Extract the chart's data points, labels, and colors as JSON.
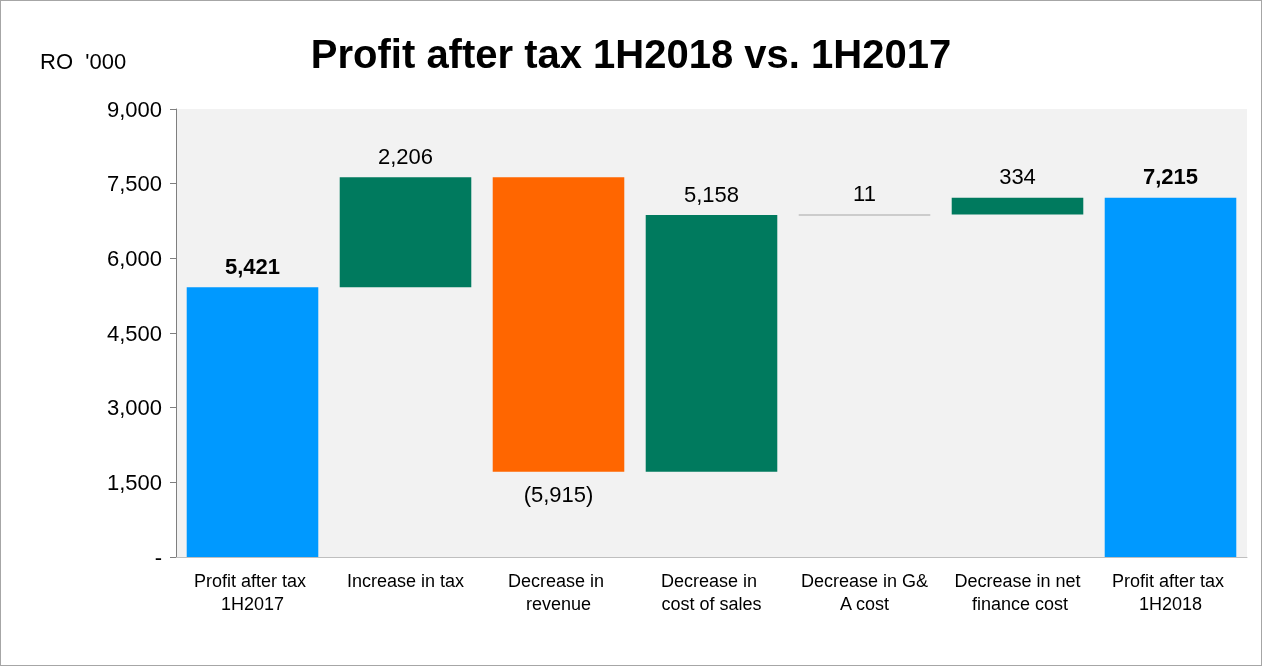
{
  "chart_data": {
    "type": "bar",
    "title": "Profit after tax 1H2018 vs. 1H2017",
    "ylabel": "RO  '000",
    "categories": [
      "Profit after tax 1H2017",
      "Increase in tax",
      "Decrease in revenue",
      "Decrease in cost of sales",
      "Decrease in G&A cost",
      "Decrease in net finance cost",
      "Profit after tax 1H2018"
    ],
    "values": [
      5421,
      2206,
      -5915,
      5158,
      11,
      334,
      7215
    ],
    "base": [
      0,
      5421,
      7627,
      1712,
      6870,
      6881,
      0
    ],
    "colors": [
      "#0099ff",
      "#007a5e",
      "#ff6600",
      "#007a5e",
      "#a6a6a6",
      "#007a5e",
      "#0099ff"
    ],
    "value_labels": [
      "5,421",
      "2,206",
      "(5,915)",
      "5,158",
      "11",
      "334",
      "7,215"
    ],
    "ylim": [
      0,
      9000
    ],
    "yticks": [
      {
        "value": 0,
        "label": "-"
      },
      {
        "value": 1500,
        "label": "1,500"
      },
      {
        "value": 3000,
        "label": "3,000"
      },
      {
        "value": 4500,
        "label": "4,500"
      },
      {
        "value": 6000,
        "label": "6,000"
      },
      {
        "value": 7500,
        "label": "7,500"
      },
      {
        "value": 9000,
        "label": "9,000"
      }
    ],
    "grid": false
  }
}
